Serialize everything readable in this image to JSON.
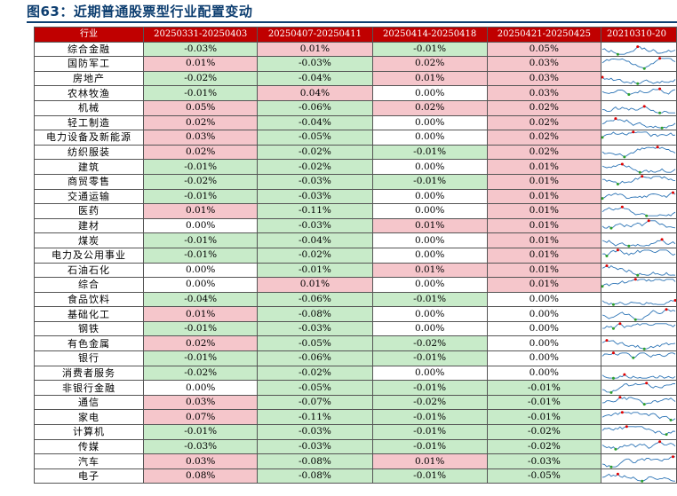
{
  "title": "图63：近期普通股票型行业配置变动",
  "headers": [
    "行业",
    "20250331-20250403",
    "20250407-20250411",
    "20250414-20250418",
    "20250421-20250425",
    "20210310-20"
  ],
  "rows": [
    {
      "industry": "综合金融",
      "v": [
        "-0.03%",
        "0.01%",
        "-0.01%",
        "0.05%"
      ]
    },
    {
      "industry": "国防军工",
      "v": [
        "0.01%",
        "-0.03%",
        "0.02%",
        "0.03%"
      ]
    },
    {
      "industry": "房地产",
      "v": [
        "-0.02%",
        "-0.04%",
        "0.01%",
        "0.03%"
      ]
    },
    {
      "industry": "农林牧渔",
      "v": [
        "-0.01%",
        "0.04%",
        "0.00%",
        "0.03%"
      ]
    },
    {
      "industry": "机械",
      "v": [
        "0.05%",
        "-0.06%",
        "0.02%",
        "0.02%"
      ]
    },
    {
      "industry": "轻工制造",
      "v": [
        "0.02%",
        "-0.04%",
        "0.00%",
        "0.02%"
      ]
    },
    {
      "industry": "电力设备及新能源",
      "v": [
        "0.03%",
        "-0.05%",
        "0.00%",
        "0.02%"
      ]
    },
    {
      "industry": "纺织服装",
      "v": [
        "0.02%",
        "-0.02%",
        "-0.01%",
        "0.02%"
      ]
    },
    {
      "industry": "建筑",
      "v": [
        "-0.01%",
        "-0.02%",
        "0.00%",
        "0.01%"
      ]
    },
    {
      "industry": "商贸零售",
      "v": [
        "-0.02%",
        "-0.03%",
        "-0.01%",
        "0.01%"
      ]
    },
    {
      "industry": "交通运输",
      "v": [
        "-0.01%",
        "-0.03%",
        "0.00%",
        "0.01%"
      ]
    },
    {
      "industry": "医药",
      "v": [
        "0.01%",
        "-0.11%",
        "0.00%",
        "0.01%"
      ]
    },
    {
      "industry": "建材",
      "v": [
        "0.00%",
        "-0.03%",
        "0.01%",
        "0.01%"
      ]
    },
    {
      "industry": "煤炭",
      "v": [
        "-0.01%",
        "-0.04%",
        "0.00%",
        "0.01%"
      ]
    },
    {
      "industry": "电力及公用事业",
      "v": [
        "-0.01%",
        "-0.02%",
        "0.00%",
        "0.01%"
      ]
    },
    {
      "industry": "石油石化",
      "v": [
        "0.00%",
        "-0.01%",
        "0.01%",
        "0.01%"
      ]
    },
    {
      "industry": "综合",
      "v": [
        "0.00%",
        "0.01%",
        "0.00%",
        "0.01%"
      ]
    },
    {
      "industry": "食品饮料",
      "v": [
        "-0.04%",
        "-0.06%",
        "-0.01%",
        "0.00%"
      ]
    },
    {
      "industry": "基础化工",
      "v": [
        "0.01%",
        "-0.08%",
        "0.00%",
        "0.00%"
      ]
    },
    {
      "industry": "钢铁",
      "v": [
        "-0.01%",
        "-0.03%",
        "0.00%",
        "0.00%"
      ]
    },
    {
      "industry": "有色金属",
      "v": [
        "0.02%",
        "-0.05%",
        "-0.02%",
        "0.00%"
      ]
    },
    {
      "industry": "银行",
      "v": [
        "-0.01%",
        "-0.06%",
        "-0.01%",
        "0.00%"
      ]
    },
    {
      "industry": "消费者服务",
      "v": [
        "-0.02%",
        "-0.02%",
        "0.00%",
        "0.00%"
      ]
    },
    {
      "industry": "非银行金融",
      "v": [
        "0.00%",
        "-0.05%",
        "-0.01%",
        "-0.01%"
      ]
    },
    {
      "industry": "通信",
      "v": [
        "0.03%",
        "-0.07%",
        "-0.02%",
        "-0.01%"
      ]
    },
    {
      "industry": "家电",
      "v": [
        "0.07%",
        "-0.11%",
        "-0.01%",
        "-0.01%"
      ]
    },
    {
      "industry": "计算机",
      "v": [
        "-0.01%",
        "-0.03%",
        "-0.01%",
        "-0.02%"
      ]
    },
    {
      "industry": "传媒",
      "v": [
        "-0.03%",
        "-0.03%",
        "-0.01%",
        "-0.02%"
      ]
    },
    {
      "industry": "汽车",
      "v": [
        "0.03%",
        "-0.08%",
        "0.01%",
        "-0.03%"
      ]
    },
    {
      "industry": "电子",
      "v": [
        "0.08%",
        "-0.08%",
        "-0.01%",
        "-0.05%"
      ]
    }
  ],
  "colors": {
    "positive": "#f5c6cb",
    "negative": "#c8ebc9",
    "zero": "#ffffff",
    "header": "#c00000",
    "title": "#0d3e70",
    "sparkline": "#2e75b6",
    "spark_high": "#e00000",
    "spark_low": "#2ca02c"
  }
}
